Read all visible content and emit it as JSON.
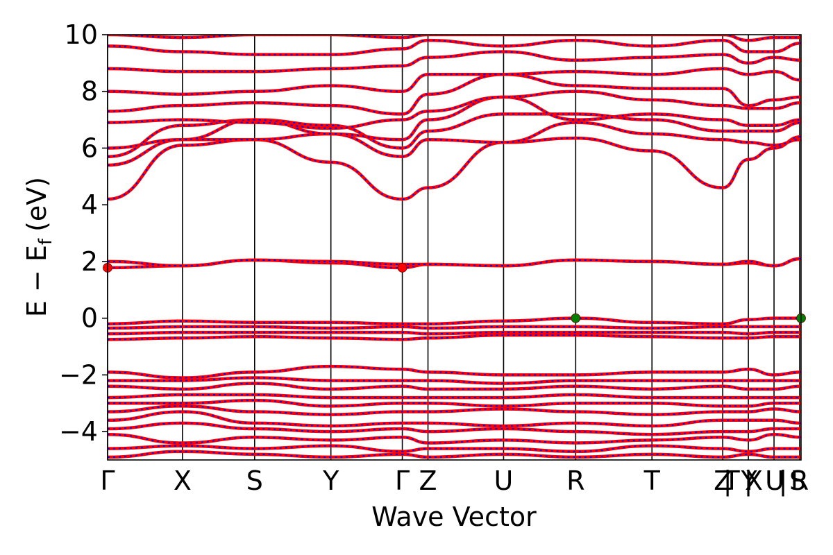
{
  "chart_data": {
    "type": "line",
    "title": "",
    "xlabel": "Wave Vector",
    "ylabel": "E − E",
    "ylabel_subscript": "f",
    "ylabel_unit": "(eV)",
    "ylim": [
      -5,
      10
    ],
    "yticks": [
      10,
      8,
      6,
      4,
      2,
      0,
      -2,
      -4
    ],
    "ytick_labels": [
      "10",
      "8",
      "6",
      "4",
      "2",
      "0",
      "−2",
      "−4"
    ],
    "kpath": {
      "x_range": [
        0,
        1
      ],
      "points": [
        {
          "label": "Γ",
          "x": 0.0
        },
        {
          "label": "X",
          "x": 0.108
        },
        {
          "label": "S",
          "x": 0.212
        },
        {
          "label": "Y",
          "x": 0.322
        },
        {
          "label": "Γ",
          "x": 0.425
        },
        {
          "label": "Z",
          "x": 0.462
        },
        {
          "label": "U",
          "x": 0.571
        },
        {
          "label": "R",
          "x": 0.675
        },
        {
          "label": "T",
          "x": 0.785
        },
        {
          "label": "Z",
          "x": 0.887
        },
        {
          "label": "|",
          "x": 0.894
        },
        {
          "label": "T",
          "x": 0.9
        },
        {
          "label": "Y",
          "x": 0.925
        },
        {
          "label": "|",
          "x": 0.924
        },
        {
          "label": "X",
          "x": 0.932
        },
        {
          "label": "U",
          "x": 0.962
        },
        {
          "label": "|",
          "x": 0.974
        },
        {
          "label": "S",
          "x": 0.995
        },
        {
          "label": "R",
          "x": 0.998
        }
      ],
      "vlines": [
        0.0,
        0.108,
        0.212,
        0.322,
        0.425,
        0.462,
        0.571,
        0.675,
        0.785,
        0.887,
        0.924,
        0.961,
        0.998
      ]
    },
    "series_colors": {
      "spin_up": "#ff0000",
      "spin_down": "#0000ff"
    },
    "band_edge_markers": [
      {
        "kind": "CBM",
        "x": 0.0,
        "y": 1.78,
        "color": "#ff0000"
      },
      {
        "kind": "CBM",
        "x": 0.425,
        "y": 1.78,
        "color": "#ff0000"
      },
      {
        "kind": "VBM",
        "x": 0.675,
        "y": 0.0,
        "color": "#008000"
      },
      {
        "kind": "VBM",
        "x": 1.0,
        "y": 0.0,
        "color": "#008000"
      }
    ],
    "bands": {
      "x": [
        0.0,
        0.108,
        0.212,
        0.322,
        0.425,
        0.462,
        0.571,
        0.675,
        0.785,
        0.887,
        0.924,
        0.961,
        1.0
      ],
      "series": [
        {
          "values": [
            -4.9,
            -4.7,
            -4.8,
            -4.9,
            -4.8,
            -4.9,
            -4.8,
            -4.9,
            -4.8,
            -4.9,
            -4.8,
            -4.9,
            -4.9
          ]
        },
        {
          "values": [
            -4.6,
            -4.5,
            -4.6,
            -4.5,
            -4.7,
            -4.6,
            -4.6,
            -4.7,
            -4.5,
            -4.6,
            -4.7,
            -4.6,
            -4.6
          ]
        },
        {
          "values": [
            -4.1,
            -4.4,
            -4.2,
            -4.3,
            -4.2,
            -4.4,
            -4.3,
            -4.4,
            -4.3,
            -4.2,
            -4.3,
            -4.1,
            -4.2
          ]
        },
        {
          "values": [
            -3.9,
            -3.7,
            -3.9,
            -4.0,
            -3.9,
            -4.0,
            -3.9,
            -4.0,
            -4.1,
            -4.0,
            -4.0,
            -3.9,
            -3.9
          ]
        },
        {
          "values": [
            -3.6,
            -3.3,
            -3.7,
            -3.8,
            -3.7,
            -3.7,
            -3.8,
            -3.7,
            -3.8,
            -3.6,
            -3.6,
            -3.6,
            -3.7
          ]
        },
        {
          "values": [
            -3.3,
            -3.1,
            -3.3,
            -3.4,
            -3.3,
            -3.3,
            -3.2,
            -3.3,
            -3.4,
            -3.3,
            -3.3,
            -3.2,
            -3.3
          ]
        },
        {
          "values": [
            -3.0,
            -3.0,
            -2.9,
            -3.1,
            -3.0,
            -3.0,
            -3.1,
            -3.0,
            -3.0,
            -3.1,
            -3.1,
            -3.0,
            -3.0
          ]
        },
        {
          "values": [
            -2.8,
            -2.7,
            -2.7,
            -2.8,
            -2.8,
            -2.8,
            -2.8,
            -2.7,
            -2.8,
            -2.8,
            -2.8,
            -2.8,
            -2.8
          ]
        },
        {
          "values": [
            -2.4,
            -2.5,
            -2.3,
            -2.5,
            -2.4,
            -2.5,
            -2.5,
            -2.4,
            -2.5,
            -2.4,
            -2.5,
            -2.5,
            -2.4
          ]
        },
        {
          "values": [
            -2.2,
            -2.2,
            -2.1,
            -2.2,
            -2.2,
            -2.2,
            -2.3,
            -2.2,
            -2.2,
            -2.2,
            -2.2,
            -2.2,
            -2.2
          ]
        },
        {
          "values": [
            -1.9,
            -2.1,
            -1.9,
            -1.7,
            -1.8,
            -1.9,
            -2.0,
            -2.0,
            -1.9,
            -1.9,
            -1.8,
            -2.0,
            -1.9
          ]
        },
        {
          "values": [
            -0.75,
            -0.7,
            -0.65,
            -0.7,
            -0.75,
            -0.7,
            -0.6,
            -0.6,
            -0.65,
            -0.7,
            -0.7,
            -0.65,
            -0.65
          ]
        },
        {
          "values": [
            -0.55,
            -0.5,
            -0.5,
            -0.5,
            -0.5,
            -0.55,
            -0.5,
            -0.5,
            -0.5,
            -0.5,
            -0.55,
            -0.5,
            -0.5
          ]
        },
        {
          "values": [
            -0.35,
            -0.3,
            -0.3,
            -0.35,
            -0.3,
            -0.35,
            -0.3,
            -0.3,
            -0.35,
            -0.3,
            -0.3,
            -0.3,
            -0.3
          ]
        },
        {
          "values": [
            -0.2,
            -0.1,
            -0.15,
            -0.15,
            -0.2,
            -0.2,
            -0.1,
            0.0,
            -0.15,
            -0.2,
            -0.05,
            0.0,
            0.0
          ]
        },
        {
          "values": [
            1.78,
            1.85,
            2.05,
            1.95,
            1.78,
            1.9,
            1.85,
            2.05,
            2.0,
            1.9,
            1.95,
            1.85,
            2.1
          ]
        },
        {
          "values": [
            2.0,
            1.85,
            2.05,
            2.0,
            1.9,
            1.9,
            1.85,
            2.05,
            2.0,
            1.9,
            2.0,
            1.85,
            2.1
          ]
        },
        {
          "values": [
            4.2,
            6.1,
            6.3,
            5.5,
            4.2,
            4.6,
            6.2,
            6.35,
            5.9,
            4.6,
            5.6,
            6.0,
            6.4
          ]
        },
        {
          "values": [
            5.4,
            6.3,
            6.3,
            6.5,
            5.7,
            6.3,
            6.2,
            6.9,
            6.5,
            6.3,
            6.2,
            6.1,
            6.3
          ]
        },
        {
          "values": [
            5.7,
            6.8,
            7.0,
            6.8,
            6.0,
            6.6,
            7.2,
            7.2,
            7.0,
            6.6,
            6.6,
            6.6,
            6.9
          ]
        },
        {
          "values": [
            6.0,
            6.3,
            7.0,
            6.5,
            6.3,
            7.0,
            7.8,
            7.0,
            7.2,
            7.0,
            6.8,
            6.8,
            7.0
          ]
        },
        {
          "values": [
            6.9,
            7.0,
            6.9,
            6.7,
            7.0,
            7.3,
            7.8,
            8.0,
            7.7,
            7.5,
            7.4,
            7.4,
            7.6
          ]
        },
        {
          "values": [
            7.3,
            7.5,
            7.6,
            7.5,
            7.2,
            7.9,
            8.6,
            8.2,
            8.1,
            8.1,
            7.5,
            7.7,
            7.8
          ]
        },
        {
          "values": [
            8.0,
            7.9,
            8.0,
            8.2,
            8.0,
            8.6,
            8.6,
            8.7,
            8.6,
            8.8,
            8.6,
            8.7,
            8.4
          ]
        },
        {
          "values": [
            8.8,
            8.7,
            8.7,
            8.8,
            8.9,
            9.2,
            9.4,
            9.1,
            9.2,
            9.3,
            9.0,
            9.2,
            9.1
          ]
        },
        {
          "values": [
            9.6,
            9.4,
            9.3,
            9.3,
            9.5,
            9.8,
            9.6,
            9.8,
            9.6,
            9.8,
            9.4,
            9.4,
            9.7
          ]
        },
        {
          "values": [
            10.0,
            9.9,
            10.0,
            10.0,
            9.9,
            10.0,
            10.0,
            10.0,
            10.0,
            10.0,
            9.8,
            9.9,
            9.9
          ]
        }
      ]
    }
  }
}
